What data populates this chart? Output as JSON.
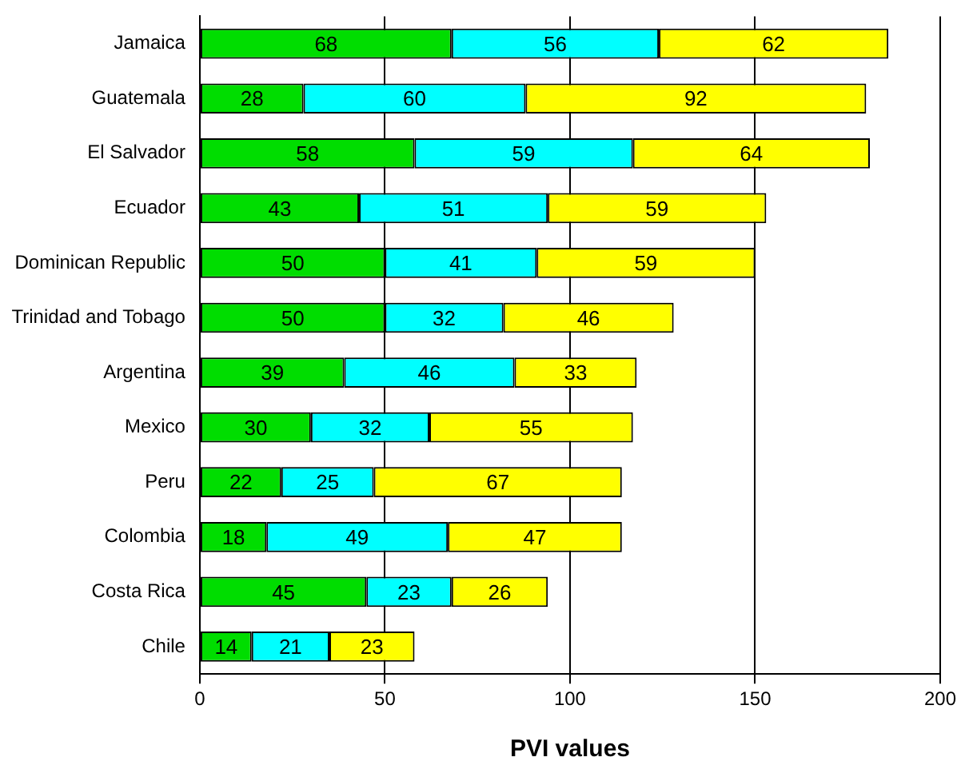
{
  "chart_data": {
    "type": "bar",
    "orientation": "horizontal",
    "stacked": true,
    "xlabel": "PVI values",
    "categories": [
      "Jamaica",
      "Guatemala",
      "El Salvador",
      "Ecuador",
      "Dominican Republic",
      "Trinidad and Tobago",
      "Argentina",
      "Mexico",
      "Peru",
      "Colombia",
      "Costa Rica",
      "Chile"
    ],
    "series": [
      {
        "color": "#00dd00",
        "values": [
          68,
          28,
          58,
          43,
          50,
          50,
          39,
          30,
          22,
          18,
          45,
          14
        ]
      },
      {
        "color": "#00ffff",
        "values": [
          56,
          60,
          59,
          51,
          41,
          32,
          46,
          32,
          25,
          49,
          23,
          21
        ]
      },
      {
        "color": "#ffff00",
        "values": [
          62,
          92,
          64,
          59,
          59,
          46,
          33,
          55,
          67,
          47,
          26,
          23
        ]
      }
    ],
    "xlim": [
      0,
      200
    ],
    "xticks": [
      0,
      50,
      100,
      150,
      200
    ],
    "grid": "x",
    "legend": false,
    "data_labels": true
  }
}
